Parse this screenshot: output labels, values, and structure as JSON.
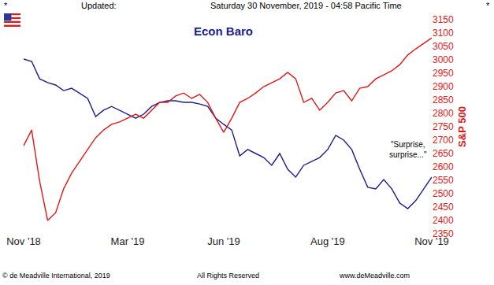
{
  "chart_data": {
    "type": "line",
    "title": "Econ Baro",
    "header": [
      "*",
      "Updated:",
      "Saturday 30 November, 2019 - 04:58 Pacific Time",
      "*"
    ],
    "footer": [
      "© de Meadville International, 2019",
      "All Rights Reserved",
      "www.deMeadville.com"
    ],
    "y_label": "S&P 500",
    "categories": [
      "Nov '18",
      null,
      null,
      null,
      null,
      null,
      null,
      null,
      null,
      null,
      null,
      null,
      null,
      "Mar '19",
      null,
      null,
      null,
      null,
      null,
      null,
      null,
      null,
      null,
      null,
      null,
      "Jun '19",
      null,
      null,
      null,
      null,
      null,
      null,
      null,
      null,
      null,
      null,
      null,
      null,
      "Aug '19",
      null,
      null,
      null,
      null,
      null,
      null,
      null,
      null,
      null,
      null,
      null,
      null,
      "Nov '19"
    ],
    "series": [
      {
        "name": "Econ Baro",
        "color": "#1c1c8c",
        "values": [
          3003,
          2994,
          2929,
          2915,
          2906,
          2885,
          2894,
          2876,
          2856,
          2788,
          2812,
          2826,
          2812,
          2797,
          2782,
          2797,
          2826,
          2841,
          2847,
          2847,
          2841,
          2841,
          2835,
          2826,
          2782,
          2759,
          2738,
          2641,
          2665,
          2650,
          2635,
          2606,
          2650,
          2591,
          2562,
          2606,
          2621,
          2635,
          2665,
          2718,
          2700,
          2665,
          2591,
          2524,
          2518,
          2553,
          2518,
          2465,
          2444,
          2474,
          2518,
          2562
        ]
      },
      {
        "name": "S&P 500",
        "color": "#e01818",
        "values": [
          2679,
          2738,
          2547,
          2400,
          2429,
          2518,
          2577,
          2621,
          2665,
          2709,
          2738,
          2759,
          2768,
          2782,
          2797,
          2782,
          2812,
          2841,
          2841,
          2865,
          2876,
          2856,
          2871,
          2841,
          2782,
          2729,
          2782,
          2841,
          2856,
          2876,
          2900,
          2915,
          2929,
          2953,
          2929,
          2841,
          2856,
          2812,
          2841,
          2876,
          2885,
          2847,
          2894,
          2900,
          2929,
          2944,
          2959,
          2982,
          3018,
          3041,
          3062,
          3082
        ]
      }
    ],
    "annotations": [
      {
        "text": [
          "\"Surprise,",
          "surprise...\""
        ],
        "x": 48,
        "y": 2665
      }
    ],
    "ylim": [
      2350,
      3150
    ],
    "yticks": [
      2350,
      2400,
      2450,
      2500,
      2550,
      2600,
      2650,
      2700,
      2750,
      2800,
      2850,
      2900,
      2950,
      3000,
      3050,
      3100,
      3150
    ],
    "grid": false
  }
}
